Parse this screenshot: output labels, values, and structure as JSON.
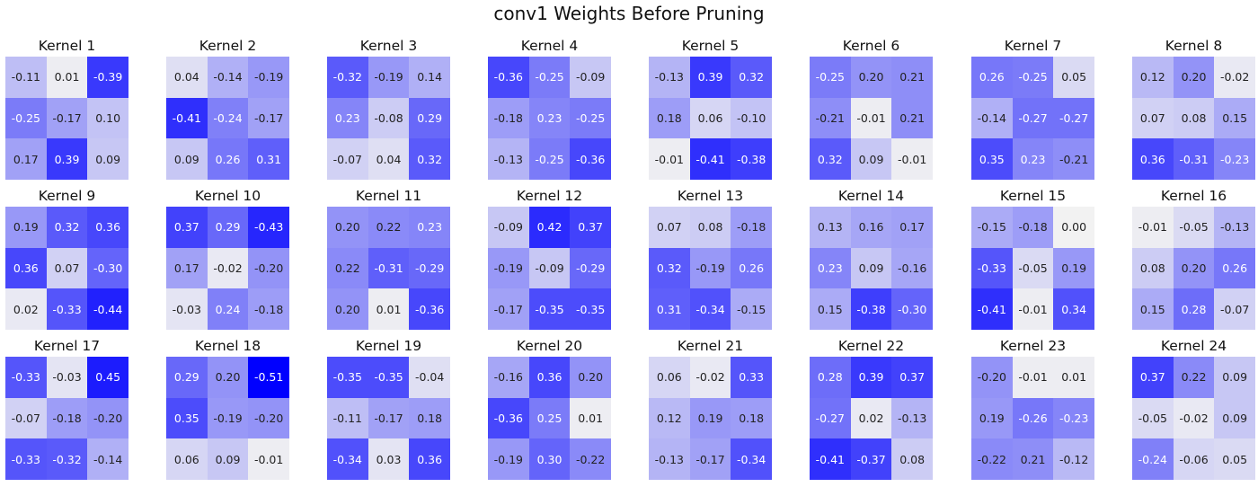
{
  "chart_data": {
    "type": "heatmap",
    "title": "conv1 Weights Before Pruning",
    "colormap": {
      "low": "#0000ff",
      "mid": "#f2f2f2",
      "high": "#0000ff",
      "abs_max": 0.51
    },
    "text_colors": {
      "dark": "#222222",
      "light": "#ffffff"
    },
    "kernels": [
      {
        "title": "Kernel 1",
        "values": [
          [
            -0.11,
            0.01,
            -0.39
          ],
          [
            -0.25,
            -0.17,
            0.1
          ],
          [
            0.17,
            0.39,
            0.09
          ]
        ]
      },
      {
        "title": "Kernel 2",
        "values": [
          [
            0.04,
            -0.14,
            -0.19
          ],
          [
            -0.41,
            -0.24,
            -0.17
          ],
          [
            0.09,
            0.26,
            0.31
          ]
        ]
      },
      {
        "title": "Kernel 3",
        "values": [
          [
            -0.32,
            -0.19,
            0.14
          ],
          [
            0.23,
            -0.08,
            0.29
          ],
          [
            -0.07,
            0.04,
            0.32
          ]
        ]
      },
      {
        "title": "Kernel 4",
        "values": [
          [
            -0.36,
            -0.25,
            -0.09
          ],
          [
            -0.18,
            0.23,
            -0.25
          ],
          [
            -0.13,
            -0.25,
            -0.36
          ]
        ]
      },
      {
        "title": "Kernel 5",
        "values": [
          [
            -0.13,
            0.39,
            0.32
          ],
          [
            0.18,
            0.06,
            -0.1
          ],
          [
            -0.01,
            -0.41,
            -0.38
          ]
        ]
      },
      {
        "title": "Kernel 6",
        "values": [
          [
            -0.25,
            0.2,
            0.21
          ],
          [
            -0.21,
            -0.01,
            0.21
          ],
          [
            0.32,
            0.09,
            -0.01
          ]
        ]
      },
      {
        "title": "Kernel 7",
        "values": [
          [
            0.26,
            -0.25,
            0.05
          ],
          [
            -0.14,
            -0.27,
            -0.27
          ],
          [
            0.35,
            0.23,
            -0.21
          ]
        ]
      },
      {
        "title": "Kernel 8",
        "values": [
          [
            0.12,
            0.2,
            -0.02
          ],
          [
            0.07,
            0.08,
            0.15
          ],
          [
            0.36,
            -0.31,
            -0.23
          ]
        ]
      },
      {
        "title": "Kernel 9",
        "values": [
          [
            0.19,
            0.32,
            0.36
          ],
          [
            0.36,
            0.07,
            -0.3
          ],
          [
            0.02,
            -0.33,
            -0.44
          ]
        ]
      },
      {
        "title": "Kernel 10",
        "values": [
          [
            0.37,
            0.29,
            -0.43
          ],
          [
            0.17,
            -0.02,
            -0.2
          ],
          [
            -0.03,
            0.24,
            -0.18
          ]
        ]
      },
      {
        "title": "Kernel 11",
        "values": [
          [
            0.2,
            0.22,
            0.23
          ],
          [
            0.22,
            -0.31,
            -0.29
          ],
          [
            0.2,
            0.01,
            -0.36
          ]
        ]
      },
      {
        "title": "Kernel 12",
        "values": [
          [
            -0.09,
            0.42,
            0.37
          ],
          [
            -0.19,
            -0.09,
            -0.29
          ],
          [
            -0.17,
            -0.35,
            -0.35
          ]
        ]
      },
      {
        "title": "Kernel 13",
        "values": [
          [
            0.07,
            0.08,
            -0.18
          ],
          [
            0.32,
            -0.19,
            0.26
          ],
          [
            0.31,
            -0.34,
            -0.15
          ]
        ]
      },
      {
        "title": "Kernel 14",
        "values": [
          [
            0.13,
            0.16,
            0.17
          ],
          [
            0.23,
            0.09,
            -0.16
          ],
          [
            0.15,
            -0.38,
            -0.3
          ]
        ]
      },
      {
        "title": "Kernel 15",
        "values": [
          [
            -0.15,
            -0.18,
            -0.0
          ],
          [
            -0.33,
            -0.05,
            0.19
          ],
          [
            -0.41,
            -0.01,
            0.34
          ]
        ]
      },
      {
        "title": "Kernel 16",
        "values": [
          [
            -0.01,
            -0.05,
            -0.13
          ],
          [
            0.08,
            0.2,
            0.26
          ],
          [
            0.15,
            0.28,
            -0.07
          ]
        ]
      },
      {
        "title": "Kernel 17",
        "values": [
          [
            -0.33,
            -0.03,
            0.45
          ],
          [
            -0.07,
            -0.18,
            -0.2
          ],
          [
            -0.33,
            -0.32,
            -0.14
          ]
        ]
      },
      {
        "title": "Kernel 18",
        "values": [
          [
            0.29,
            0.2,
            -0.51
          ],
          [
            0.35,
            -0.19,
            -0.2
          ],
          [
            0.06,
            0.09,
            -0.01
          ]
        ]
      },
      {
        "title": "Kernel 19",
        "values": [
          [
            -0.35,
            -0.35,
            -0.04
          ],
          [
            -0.11,
            -0.17,
            0.18
          ],
          [
            -0.34,
            0.03,
            0.36
          ]
        ]
      },
      {
        "title": "Kernel 20",
        "values": [
          [
            -0.16,
            0.36,
            0.2
          ],
          [
            -0.36,
            0.25,
            0.01
          ],
          [
            -0.19,
            0.3,
            -0.22
          ]
        ]
      },
      {
        "title": "Kernel 21",
        "values": [
          [
            0.06,
            -0.02,
            0.33
          ],
          [
            0.12,
            0.19,
            0.18
          ],
          [
            -0.13,
            -0.17,
            -0.34
          ]
        ]
      },
      {
        "title": "Kernel 22",
        "values": [
          [
            0.28,
            0.39,
            0.37
          ],
          [
            -0.27,
            0.02,
            -0.13
          ],
          [
            -0.41,
            -0.37,
            0.08
          ]
        ]
      },
      {
        "title": "Kernel 23",
        "values": [
          [
            -0.2,
            -0.01,
            0.01
          ],
          [
            0.19,
            -0.26,
            -0.23
          ],
          [
            -0.22,
            0.21,
            -0.12
          ]
        ]
      },
      {
        "title": "Kernel 24",
        "values": [
          [
            0.37,
            0.22,
            0.09
          ],
          [
            -0.05,
            -0.02,
            0.09
          ],
          [
            -0.24,
            -0.06,
            0.05
          ]
        ]
      }
    ]
  }
}
